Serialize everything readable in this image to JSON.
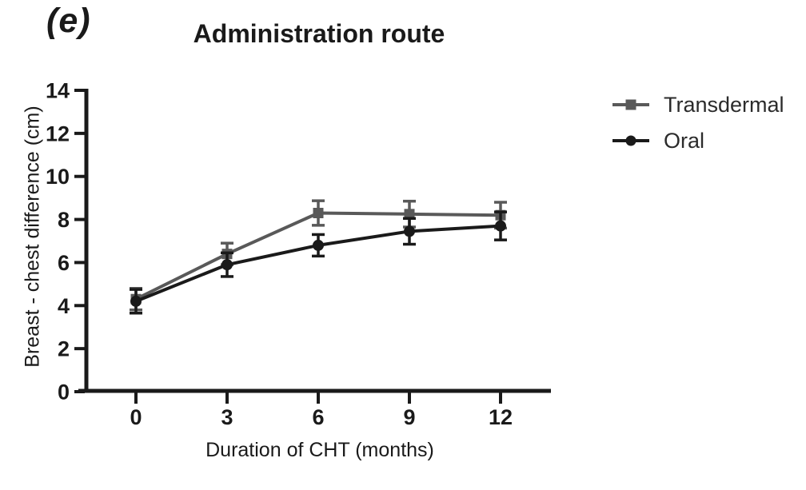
{
  "panel_label": "(e)",
  "title": "Administration route",
  "y_axis_label": "Breast - chest difference (cm)",
  "x_axis_label": "Duration of CHT (months)",
  "chart_data": {
    "type": "line",
    "title": "Administration route",
    "xlabel": "Duration of CHT (months)",
    "ylabel": "Breast - chest difference (cm)",
    "x": [
      0,
      3,
      6,
      9,
      12
    ],
    "x_tick_labels": [
      "0",
      "3",
      "6",
      "9",
      "12"
    ],
    "y_ticks": [
      0,
      2,
      4,
      6,
      8,
      10,
      12,
      14
    ],
    "ylim": [
      0,
      14
    ],
    "grid": false,
    "legend_position": "right",
    "error_bars": true,
    "axis_color": "#1a1a1a",
    "series": [
      {
        "name": "Transdermal",
        "marker": "square",
        "color": "#595959",
        "values": [
          4.3,
          6.4,
          8.3,
          8.25,
          8.2
        ],
        "errors": [
          0.5,
          0.5,
          0.57,
          0.6,
          0.6
        ]
      },
      {
        "name": "Oral",
        "marker": "circle",
        "color": "#1a1a1a",
        "values": [
          4.2,
          5.9,
          6.8,
          7.45,
          7.7
        ],
        "errors": [
          0.55,
          0.55,
          0.5,
          0.6,
          0.65
        ]
      }
    ]
  }
}
